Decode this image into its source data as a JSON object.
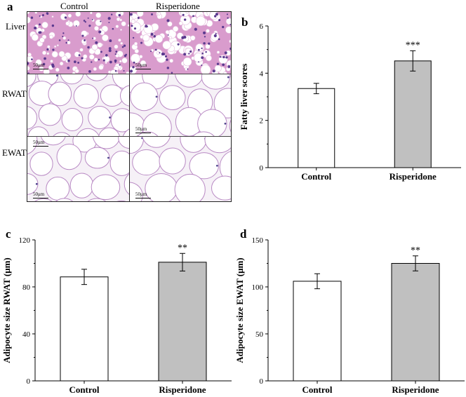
{
  "panels": {
    "a": "a",
    "b": "b",
    "c": "c",
    "d": "d"
  },
  "histology": {
    "columns": [
      "Control",
      "Risperidone"
    ],
    "rows": [
      "Liver",
      "RWAT",
      "EWAT"
    ],
    "scale_label": "50μm",
    "colors": {
      "liver_bg": "#d99ccd",
      "liver_nuclei": "#5b3a8f",
      "adipose_bg": "#f6f1f7",
      "adipose_membrane": "#b98ac4",
      "adipose_nuclei": "#52478f"
    }
  },
  "chart_data": [
    {
      "panel": "b",
      "type": "bar",
      "categories": [
        "Control",
        "Risperidone"
      ],
      "values": [
        3.35,
        4.52
      ],
      "errors": [
        0.22,
        0.43
      ],
      "significance": [
        "",
        "***"
      ],
      "bar_colors": [
        "#ffffff",
        "#c0c0c0"
      ],
      "ylabel": "Fatty liver scores",
      "ylim": [
        0,
        6
      ],
      "yticks": [
        0,
        2,
        4,
        6
      ]
    },
    {
      "panel": "c",
      "type": "bar",
      "categories": [
        "Control",
        "Risperidone"
      ],
      "values": [
        88.5,
        101
      ],
      "errors": [
        6.5,
        7.5
      ],
      "significance": [
        "",
        "**"
      ],
      "bar_colors": [
        "#ffffff",
        "#c0c0c0"
      ],
      "ylabel": "Adipocyte size RWAT (μm)",
      "ylim": [
        0,
        120
      ],
      "yticks": [
        0,
        40,
        80,
        120
      ]
    },
    {
      "panel": "d",
      "type": "bar",
      "categories": [
        "Control",
        "Risperidone"
      ],
      "values": [
        106,
        125
      ],
      "errors": [
        8,
        8
      ],
      "significance": [
        "",
        "**"
      ],
      "bar_colors": [
        "#ffffff",
        "#c0c0c0"
      ],
      "ylabel": "Adipocyte size EWAT (μm)",
      "ylim": [
        0,
        150
      ],
      "yticks": [
        0,
        50,
        100,
        150
      ]
    }
  ]
}
